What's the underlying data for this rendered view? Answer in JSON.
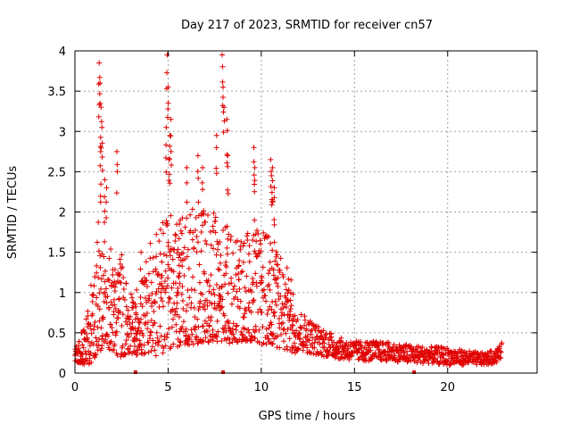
{
  "colors": {
    "series": "#e00000",
    "axis": "#000000",
    "grid": "#a0a0a0",
    "background": "#ffffff"
  },
  "chart_data": {
    "type": "scatter",
    "title": "Day 217 of 2023, SRMTID for receiver cn57",
    "xlabel": "GPS time / hours",
    "ylabel": "SRMTID / TECUs",
    "xlim": [
      0,
      24.8
    ],
    "ylim": [
      0,
      4
    ],
    "xticks": [
      0,
      5,
      10,
      15,
      20
    ],
    "yticks": [
      0,
      0.5,
      1,
      1.5,
      2,
      2.5,
      3,
      3.5,
      4
    ],
    "xtick_labels": [
      "0",
      "5",
      "10",
      "15",
      "20"
    ],
    "ytick_labels": [
      "0",
      "0.5",
      "1",
      "1.5",
      "2",
      "2.5",
      "3",
      "3.5",
      "4"
    ],
    "grid": true,
    "marker": "plus",
    "series": [
      {
        "name": "SRMTID",
        "envelope": {
          "note": "approximate upper and lower bounds of the dense point cloud (x in hours, y in TECU)",
          "x": [
            0.0,
            0.5,
            1.0,
            1.3,
            1.5,
            2.0,
            2.5,
            3.0,
            3.5,
            4.0,
            4.5,
            5.0,
            5.5,
            6.0,
            6.5,
            7.0,
            7.5,
            8.0,
            8.5,
            9.0,
            9.5,
            10.0,
            10.5,
            11.0,
            11.5,
            12.0,
            12.5,
            13.0,
            13.5,
            14.0,
            15.0,
            16.0,
            17.0,
            18.0,
            19.0,
            20.0,
            21.0,
            22.0,
            22.6,
            22.9
          ],
          "upper": [
            0.3,
            0.6,
            1.3,
            2.0,
            1.8,
            1.6,
            1.5,
            1.0,
            1.1,
            1.6,
            1.8,
            2.0,
            1.9,
            2.0,
            2.1,
            2.0,
            2.0,
            1.9,
            1.8,
            1.7,
            1.8,
            1.8,
            1.7,
            1.5,
            1.3,
            0.8,
            0.7,
            0.6,
            0.55,
            0.45,
            0.4,
            0.4,
            0.38,
            0.35,
            0.33,
            0.32,
            0.28,
            0.25,
            0.3,
            0.38
          ],
          "lower": [
            0.15,
            0.1,
            0.12,
            0.3,
            0.25,
            0.25,
            0.2,
            0.25,
            0.2,
            0.25,
            0.2,
            0.3,
            0.3,
            0.35,
            0.35,
            0.4,
            0.35,
            0.4,
            0.35,
            0.4,
            0.4,
            0.35,
            0.35,
            0.3,
            0.25,
            0.25,
            0.25,
            0.22,
            0.2,
            0.18,
            0.15,
            0.15,
            0.15,
            0.12,
            0.12,
            0.1,
            0.1,
            0.1,
            0.12,
            0.2
          ]
        },
        "peaks": {
          "note": "isolated high values visible above the main cloud",
          "x": [
            1.3,
            1.35,
            1.4,
            1.45,
            1.38,
            2.25,
            4.95,
            5.0,
            4.9,
            5.1,
            5.15,
            5.05,
            6.0,
            6.6,
            6.85,
            7.6,
            7.9,
            7.95,
            8.0,
            8.15,
            8.2,
            9.6,
            9.65,
            10.5,
            10.6,
            10.55,
            10.7,
            1.6,
            1.7,
            3.55,
            5.6
          ],
          "y": [
            3.85,
            3.6,
            3.3,
            3.05,
            2.75,
            2.75,
            3.95,
            3.55,
            3.05,
            2.95,
            3.15,
            2.65,
            2.55,
            2.7,
            2.55,
            2.95,
            3.95,
            3.55,
            3.3,
            3.15,
            2.7,
            2.8,
            2.55,
            2.65,
            2.55,
            2.45,
            2.3,
            2.4,
            2.3,
            1.5,
            1.85
          ]
        },
        "ground_points": {
          "x": [
            3.25,
            7.95,
            18.2
          ],
          "y": [
            0.0,
            0.0,
            0.0
          ]
        }
      }
    ]
  }
}
